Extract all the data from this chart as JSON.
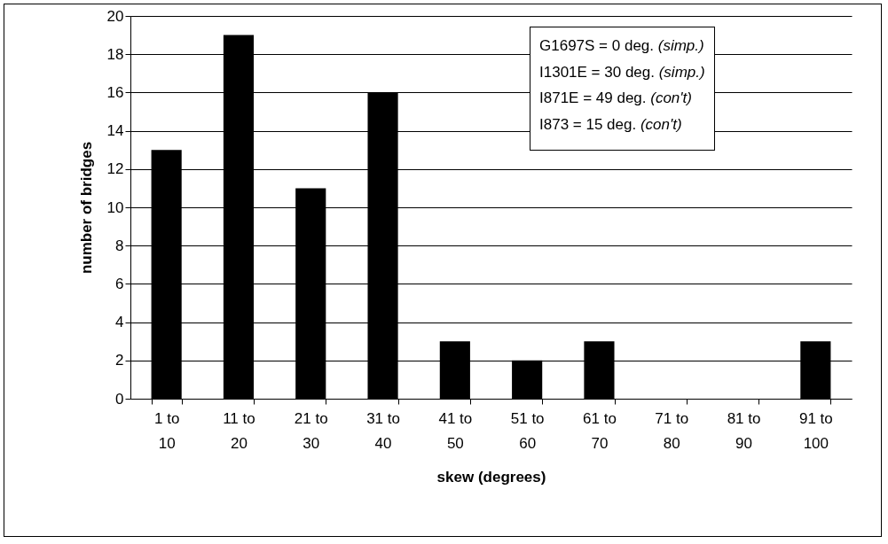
{
  "chart_data": {
    "type": "bar",
    "xlabel": "skew (degrees)",
    "ylabel": "number of bridges",
    "categories": [
      "1 to 10",
      "11 to 20",
      "21 to 30",
      "31 to 40",
      "41 to 50",
      "51 to 60",
      "61 to 70",
      "71 to 80",
      "81 to 90",
      "91 to 100"
    ],
    "values": [
      13,
      19,
      11,
      16,
      3,
      2,
      3,
      0,
      0,
      3
    ],
    "color": "#000000",
    "ylim": [
      0,
      20
    ],
    "yticks": [
      0,
      2,
      4,
      6,
      8,
      10,
      12,
      14,
      16,
      18,
      20
    ],
    "grid": "y",
    "annotations": [
      "G1697S = 0 deg. (simp.)",
      "I1301E = 30 deg. (simp.)",
      "I871E = 49 deg. (con't)",
      "I873 = 15 deg. (con't)"
    ]
  }
}
